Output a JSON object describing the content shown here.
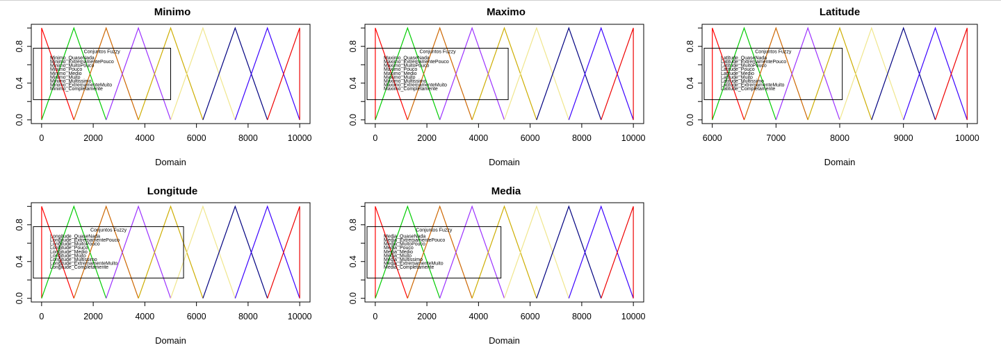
{
  "legend_colors": [
    "#ff0000",
    "#00cd00",
    "#cd6600",
    "#9b30ff",
    "#cdad00",
    "#f0e68c",
    "#000080",
    "#3a00ff",
    "#ee0000"
  ],
  "chart_data": [
    {
      "type": "line",
      "title": "Minimo",
      "xlabel": "Domain",
      "ylabel": "",
      "xlim": [
        0,
        10000
      ],
      "ylim": [
        0,
        1
      ],
      "x_ticks": [
        0,
        2000,
        4000,
        6000,
        8000,
        10000
      ],
      "y_ticks": [
        0.0,
        0.4,
        0.8
      ],
      "y_tick_labels": [
        "0.0",
        "0.4",
        "0.8"
      ],
      "grid": false,
      "legend": {
        "title": "Conjuntos Fuzzy",
        "placement": "left",
        "right_x": 5000,
        "entries": [
          "Minimo_QuaseNada",
          "Minimo_ExtremamentePouco",
          "Minimo_MuitoPouco",
          "Minimo_Pouco",
          "Minimo_Medio",
          "Minimo_Muito",
          "Minimo_Multissimo",
          "Minimo_ExtremamenteMuito",
          "Minimo_Completamente"
        ]
      },
      "series": [
        {
          "x": [
            0,
            0,
            1250
          ],
          "y": [
            0,
            1,
            0
          ]
        },
        {
          "x": [
            0,
            1250,
            2500
          ],
          "y": [
            0,
            1,
            0
          ]
        },
        {
          "x": [
            1250,
            2500,
            3750
          ],
          "y": [
            0,
            1,
            0
          ]
        },
        {
          "x": [
            2500,
            3750,
            5000
          ],
          "y": [
            0,
            1,
            0
          ]
        },
        {
          "x": [
            3750,
            5000,
            6250
          ],
          "y": [
            0,
            1,
            0
          ]
        },
        {
          "x": [
            5000,
            6250,
            7500
          ],
          "y": [
            0,
            1,
            0
          ]
        },
        {
          "x": [
            6250,
            7500,
            8750
          ],
          "y": [
            0,
            1,
            0
          ]
        },
        {
          "x": [
            7500,
            8750,
            10000
          ],
          "y": [
            0,
            1,
            0
          ]
        },
        {
          "x": [
            8750,
            10000,
            10000
          ],
          "y": [
            0,
            1,
            0
          ]
        }
      ]
    },
    {
      "type": "line",
      "title": "Maximo",
      "xlabel": "Domain",
      "ylabel": "",
      "xlim": [
        0,
        10000
      ],
      "ylim": [
        0,
        1
      ],
      "x_ticks": [
        0,
        2000,
        4000,
        6000,
        8000,
        10000
      ],
      "y_ticks": [
        0.0,
        0.4,
        0.8
      ],
      "y_tick_labels": [
        "0.0",
        "0.4",
        "0.8"
      ],
      "grid": false,
      "legend": {
        "title": "Conjuntos Fuzzy",
        "placement": "left",
        "right_x": 5150,
        "entries": [
          "Maximo_QuaseNada",
          "Maximo_ExtremamentePouco",
          "Maximo_MuitoPouco",
          "Maximo_Pouco",
          "Maximo_Medio",
          "Maximo_Muito",
          "Maximo_Multissimo",
          "Maximo_ExtremamenteMuito",
          "Maximo_Completamente"
        ]
      },
      "series": [
        {
          "x": [
            0,
            0,
            1250
          ],
          "y": [
            0,
            1,
            0
          ]
        },
        {
          "x": [
            0,
            1250,
            2500
          ],
          "y": [
            0,
            1,
            0
          ]
        },
        {
          "x": [
            1250,
            2500,
            3750
          ],
          "y": [
            0,
            1,
            0
          ]
        },
        {
          "x": [
            2500,
            3750,
            5000
          ],
          "y": [
            0,
            1,
            0
          ]
        },
        {
          "x": [
            3750,
            5000,
            6250
          ],
          "y": [
            0,
            1,
            0
          ]
        },
        {
          "x": [
            5000,
            6250,
            7500
          ],
          "y": [
            0,
            1,
            0
          ]
        },
        {
          "x": [
            6250,
            7500,
            8750
          ],
          "y": [
            0,
            1,
            0
          ]
        },
        {
          "x": [
            7500,
            8750,
            10000
          ],
          "y": [
            0,
            1,
            0
          ]
        },
        {
          "x": [
            8750,
            10000,
            10000
          ],
          "y": [
            0,
            1,
            0
          ]
        }
      ]
    },
    {
      "type": "line",
      "title": "Latitude",
      "xlabel": "Domain",
      "ylabel": "",
      "xlim": [
        6000,
        10000
      ],
      "ylim": [
        0,
        1
      ],
      "x_ticks": [
        6000,
        7000,
        8000,
        9000,
        10000
      ],
      "y_ticks": [
        0.0,
        0.4,
        0.8
      ],
      "y_tick_labels": [
        "0.0",
        "0.4",
        "0.8"
      ],
      "grid": false,
      "legend": {
        "title": "Conjuntos Fuzzy",
        "placement": "left",
        "right_x": 8040,
        "entries": [
          "Latitude_QuaseNada",
          "Latitude_ExtremamentePouco",
          "Latitude_MuitoPouco",
          "Latitude_Pouco",
          "Latitude_Medio",
          "Latitude_Muito",
          "Latitude_Multissimo",
          "Latitude_ExtremamenteMuito",
          "Latitude_Completamente"
        ]
      },
      "series": [
        {
          "x": [
            6000,
            6000,
            6500
          ],
          "y": [
            0,
            1,
            0
          ]
        },
        {
          "x": [
            6000,
            6500,
            7000
          ],
          "y": [
            0,
            1,
            0
          ]
        },
        {
          "x": [
            6500,
            7000,
            7500
          ],
          "y": [
            0,
            1,
            0
          ]
        },
        {
          "x": [
            7000,
            7500,
            8000
          ],
          "y": [
            0,
            1,
            0
          ]
        },
        {
          "x": [
            7500,
            8000,
            8500
          ],
          "y": [
            0,
            1,
            0
          ]
        },
        {
          "x": [
            8000,
            8500,
            9000
          ],
          "y": [
            0,
            1,
            0
          ]
        },
        {
          "x": [
            8500,
            9000,
            9500
          ],
          "y": [
            0,
            1,
            0
          ]
        },
        {
          "x": [
            9000,
            9500,
            10000
          ],
          "y": [
            0,
            1,
            0
          ]
        },
        {
          "x": [
            9500,
            10000,
            10000
          ],
          "y": [
            0,
            1,
            0
          ]
        }
      ]
    },
    {
      "type": "line",
      "title": "Longitude",
      "xlabel": "Domain",
      "ylabel": "",
      "xlim": [
        0,
        10000
      ],
      "ylim": [
        0,
        1
      ],
      "x_ticks": [
        0,
        2000,
        4000,
        6000,
        8000,
        10000
      ],
      "y_ticks": [
        0.0,
        0.4,
        0.8
      ],
      "y_tick_labels": [
        "0.0",
        "0.4",
        "0.8"
      ],
      "grid": false,
      "legend": {
        "title": "Conjuntos Fuzzy",
        "placement": "left",
        "right_x": 5500,
        "entries": [
          "Longitude_QuaseNada",
          "Longitude_ExtremamentePouco",
          "Longitude_MuitoPouco",
          "Longitude_Pouco",
          "Longitude_Medio",
          "Longitude_Muito",
          "Longitude_Multissimo",
          "Longitude_ExtremamenteMuito",
          "Longitude_Completamente"
        ]
      },
      "series": [
        {
          "x": [
            0,
            0,
            1250
          ],
          "y": [
            0,
            1,
            0
          ]
        },
        {
          "x": [
            0,
            1250,
            2500
          ],
          "y": [
            0,
            1,
            0
          ]
        },
        {
          "x": [
            1250,
            2500,
            3750
          ],
          "y": [
            0,
            1,
            0
          ]
        },
        {
          "x": [
            2500,
            3750,
            5000
          ],
          "y": [
            0,
            1,
            0
          ]
        },
        {
          "x": [
            3750,
            5000,
            6250
          ],
          "y": [
            0,
            1,
            0
          ]
        },
        {
          "x": [
            5000,
            6250,
            7500
          ],
          "y": [
            0,
            1,
            0
          ]
        },
        {
          "x": [
            6250,
            7500,
            8750
          ],
          "y": [
            0,
            1,
            0
          ]
        },
        {
          "x": [
            7500,
            8750,
            10000
          ],
          "y": [
            0,
            1,
            0
          ]
        },
        {
          "x": [
            8750,
            10000,
            10000
          ],
          "y": [
            0,
            1,
            0
          ]
        }
      ]
    },
    {
      "type": "line",
      "title": "Media",
      "xlabel": "Domain",
      "ylabel": "",
      "xlim": [
        0,
        10000
      ],
      "ylim": [
        0,
        1
      ],
      "x_ticks": [
        0,
        2000,
        4000,
        6000,
        8000,
        10000
      ],
      "y_ticks": [
        0.0,
        0.4,
        0.8
      ],
      "y_tick_labels": [
        "0.0",
        "0.4",
        "0.8"
      ],
      "grid": false,
      "legend": {
        "title": "Conjuntos Fuzzy",
        "placement": "left",
        "right_x": 4870,
        "entries": [
          "Media_QuaseNada",
          "Media_ExtremamentePouco",
          "Media_MuitoPouco",
          "Media_Pouco",
          "Media_Medio",
          "Media_Muito",
          "Media_Multissimo",
          "Media_ExtremamenteMuito",
          "Media_Completamente"
        ]
      },
      "series": [
        {
          "x": [
            0,
            0,
            1250
          ],
          "y": [
            0,
            1,
            0
          ]
        },
        {
          "x": [
            0,
            1250,
            2500
          ],
          "y": [
            0,
            1,
            0
          ]
        },
        {
          "x": [
            1250,
            2500,
            3750
          ],
          "y": [
            0,
            1,
            0
          ]
        },
        {
          "x": [
            2500,
            3750,
            5000
          ],
          "y": [
            0,
            1,
            0
          ]
        },
        {
          "x": [
            3750,
            5000,
            6250
          ],
          "y": [
            0,
            1,
            0
          ]
        },
        {
          "x": [
            5000,
            6250,
            7500
          ],
          "y": [
            0,
            1,
            0
          ]
        },
        {
          "x": [
            6250,
            7500,
            8750
          ],
          "y": [
            0,
            1,
            0
          ]
        },
        {
          "x": [
            7500,
            8750,
            10000
          ],
          "y": [
            0,
            1,
            0
          ]
        },
        {
          "x": [
            8750,
            10000,
            10000
          ],
          "y": [
            0,
            1,
            0
          ]
        }
      ]
    }
  ]
}
